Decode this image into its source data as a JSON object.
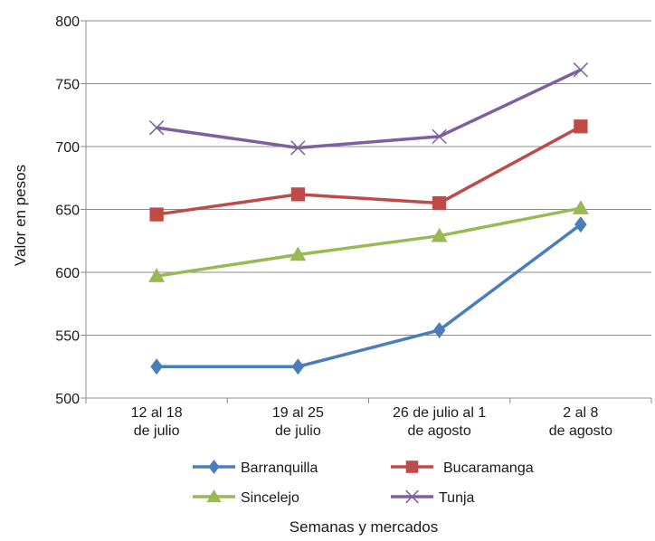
{
  "chart_data": {
    "type": "line",
    "title": "",
    "xlabel": "Semanas y mercados",
    "ylabel": "Valor en pesos",
    "ylim": [
      500,
      800
    ],
    "yticks": [
      "500",
      "550",
      "600",
      "650",
      "700",
      "750",
      "800"
    ],
    "grid": true,
    "legend_position": "bottom",
    "categories": [
      [
        "12 al 18",
        "de julio"
      ],
      [
        "19 al 25",
        "de julio"
      ],
      [
        "26 de julio al 1",
        "de agosto"
      ],
      [
        "2 al 8",
        "de agosto"
      ]
    ],
    "series": [
      {
        "name": "Barranquilla",
        "values": [
          525,
          525,
          554,
          638
        ],
        "color": "#4a7ebb",
        "marker": "diamond"
      },
      {
        "name": "Bucaramanga",
        "values": [
          646,
          662,
          655,
          716
        ],
        "color": "#be4b48",
        "marker": "square"
      },
      {
        "name": "Sincelejo",
        "values": [
          597,
          614,
          629,
          651
        ],
        "color": "#98b954",
        "marker": "triangle"
      },
      {
        "name": "Tunja",
        "values": [
          715,
          699,
          708,
          761
        ],
        "color": "#7d60a0",
        "marker": "x"
      }
    ]
  }
}
